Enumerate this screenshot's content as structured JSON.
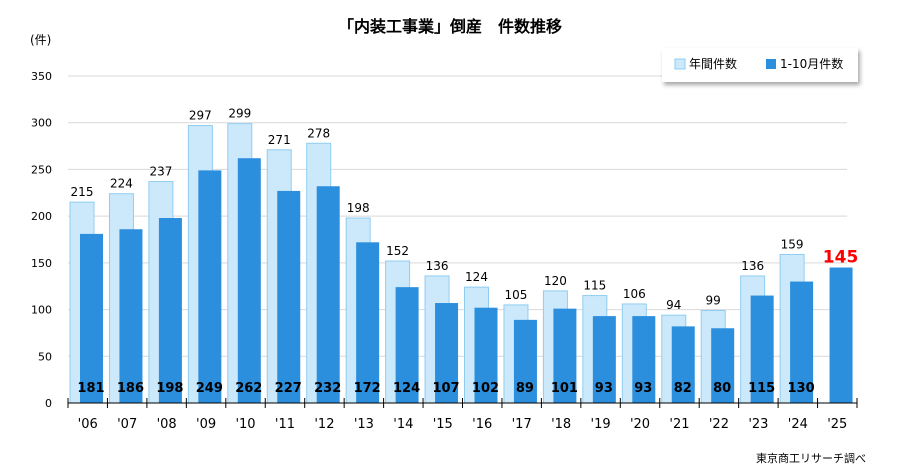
{
  "chart_data": {
    "type": "bar",
    "title": "「内装工事業」倒産　件数推移",
    "ylabel": "(件)",
    "ylim": [
      0,
      350
    ],
    "yticks": [
      0,
      50,
      100,
      150,
      200,
      250,
      300,
      350
    ],
    "grid": true,
    "legend_placement": "top-right",
    "categories": [
      "'06",
      "'07",
      "'08",
      "'09",
      "'10",
      "'11",
      "'12",
      "'13",
      "'14",
      "'15",
      "'16",
      "'17",
      "'18",
      "'19",
      "'20",
      "'21",
      "'22",
      "'23",
      "'24",
      "'25"
    ],
    "series": [
      {
        "name": "年間件数",
        "color": "#cce9fb",
        "values": [
          215,
          224,
          237,
          297,
          299,
          271,
          278,
          198,
          152,
          136,
          124,
          105,
          120,
          115,
          106,
          94,
          99,
          136,
          159,
          null
        ]
      },
      {
        "name": "1-10月件数",
        "color": "#2b8fde",
        "values": [
          181,
          186,
          198,
          249,
          262,
          227,
          232,
          172,
          124,
          107,
          102,
          89,
          101,
          93,
          93,
          82,
          80,
          115,
          130,
          145
        ]
      }
    ],
    "highlight_color": "#ff0000",
    "source": "東京商工リサーチ調べ"
  }
}
